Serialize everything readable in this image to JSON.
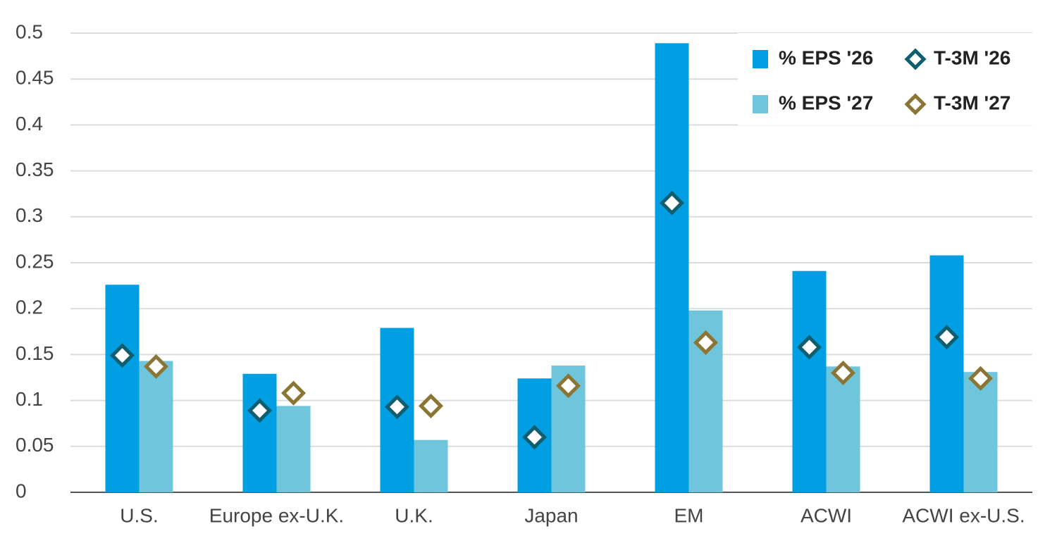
{
  "chart_data": {
    "type": "bar",
    "categories": [
      "U.S.",
      "Europe ex-U.K.",
      "U.K.",
      "Japan",
      "EM",
      "ACWI",
      "ACWI ex-U.S."
    ],
    "series": [
      {
        "name": "% EPS '26",
        "color": "#009fe3",
        "style": "bar",
        "values": [
          0.226,
          0.129,
          0.179,
          0.124,
          0.489,
          0.241,
          0.258
        ]
      },
      {
        "name": "% EPS '27",
        "color": "#6fc6dc",
        "style": "bar",
        "values": [
          0.143,
          0.094,
          0.057,
          0.138,
          0.198,
          0.137,
          0.131
        ]
      },
      {
        "name": "T-3M '26",
        "color": "#0e5e6f",
        "style": "diamond",
        "values": [
          0.149,
          0.089,
          0.093,
          0.06,
          0.315,
          0.158,
          0.169
        ]
      },
      {
        "name": "T-3M '27",
        "color": "#8b7535",
        "style": "diamond",
        "values": [
          0.137,
          0.108,
          0.094,
          0.116,
          0.163,
          0.13,
          0.124
        ]
      }
    ],
    "ylim": [
      0,
      0.5
    ],
    "yticks": [
      0,
      0.05,
      0.1,
      0.15,
      0.2,
      0.25,
      0.3,
      0.35,
      0.4,
      0.45,
      0.5
    ],
    "grid": true,
    "legend": "top-right"
  }
}
